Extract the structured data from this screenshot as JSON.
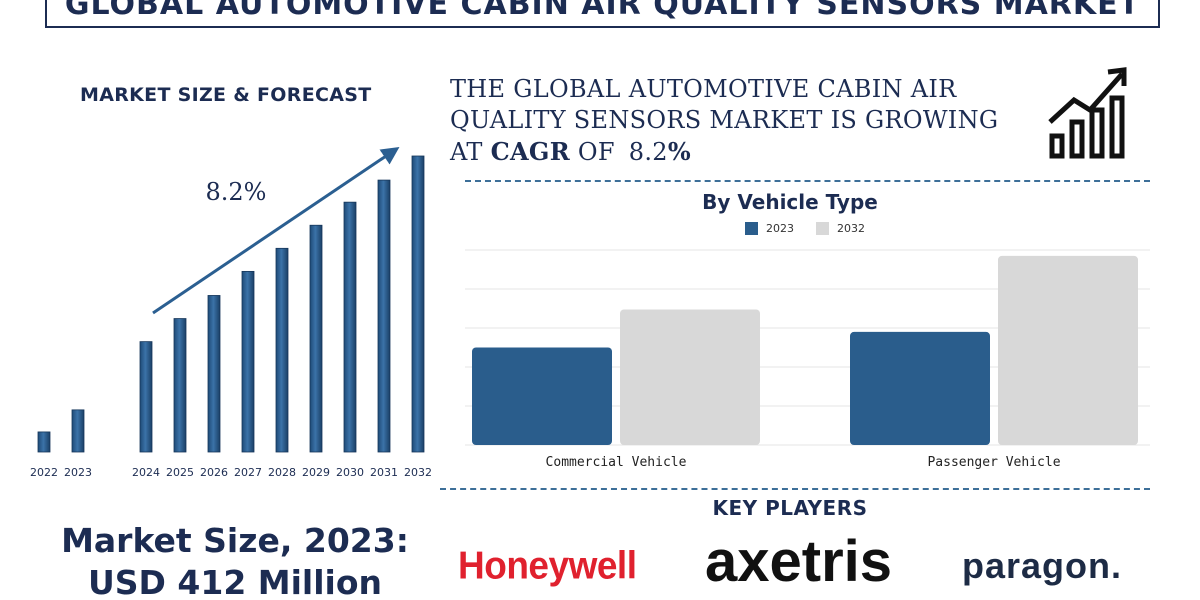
{
  "title": "GLOBAL AUTOMOTIVE CABIN AIR QUALITY SENSORS MARKET",
  "left_heading": "MARKET SIZE & FORECAST",
  "headline": {
    "line1": "THE GLOBAL  AUTOMOTIVE CABIN AIR",
    "line2": "QUALITY SENSORS  MARKET IS GROWING",
    "line3_prefix": "AT",
    "line3_cagr": "CAGR",
    "line3_of": "OF",
    "line3_value": "8.2",
    "line3_pct": "%"
  },
  "market_size": {
    "line1": "Market Size, 2023:",
    "line2": "USD 412 Million"
  },
  "key_players_title": "KEY PLAYERS",
  "key_players": [
    "Honeywell",
    "axetris",
    "paragon."
  ],
  "icons": [
    "growth-chart-icon"
  ],
  "colors": {
    "navy": "#1c2c52",
    "bar_blue": "#2b5f91",
    "bar_2023": "#2a5d8c",
    "bar_2032": "#d8d8d8",
    "dashed": "#3d6f98",
    "honeywell_red": "#e0212e"
  },
  "chart_data": [
    {
      "type": "bar",
      "title": "",
      "categories": [
        "2022",
        "2023",
        "2024",
        "2025",
        "2026",
        "2027",
        "2028",
        "2029",
        "2030",
        "2031",
        "2032"
      ],
      "values": [
        20,
        42,
        110,
        133,
        156,
        180,
        203,
        226,
        249,
        271,
        295
      ],
      "annotation": "8.2%",
      "y_axis_visible": false,
      "grid": false
    },
    {
      "type": "bar",
      "title": "By Vehicle Type",
      "categories": [
        "Commercial Vehicle",
        "Passenger Vehicle"
      ],
      "series": [
        {
          "name": "2023",
          "values": [
            100,
            116
          ]
        },
        {
          "name": "2032",
          "values": [
            139,
            194
          ]
        }
      ],
      "ylim": [
        0,
        200
      ],
      "legend": "top",
      "grid": true
    }
  ]
}
